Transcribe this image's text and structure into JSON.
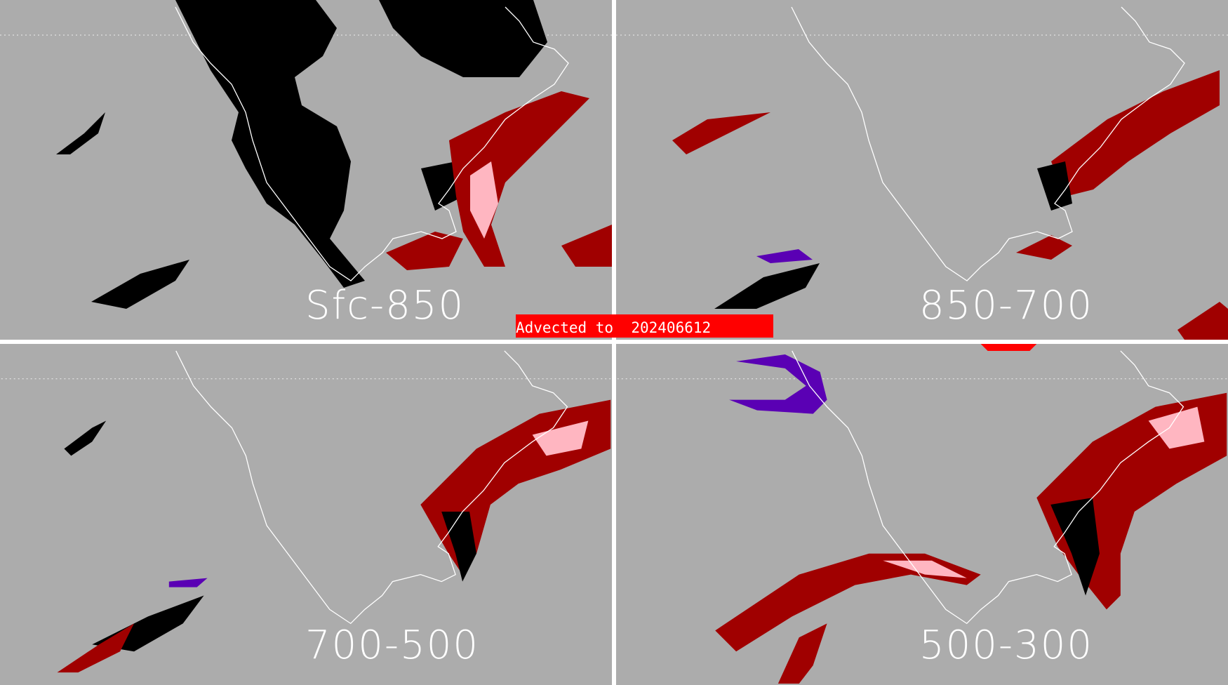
{
  "panels": [
    {
      "label": "Sfc-850"
    },
    {
      "label": "850-700"
    },
    {
      "label": "700-500"
    },
    {
      "label": "500-300"
    }
  ],
  "banner": {
    "text": "Advected to  202406612"
  },
  "colors": {
    "background": "#acacac",
    "outline": "#ffffff",
    "dark_red": "#a00000",
    "pink": "#ffb6c1",
    "black": "#000000",
    "purple": "#5a00b4",
    "red": "#ff0000"
  }
}
